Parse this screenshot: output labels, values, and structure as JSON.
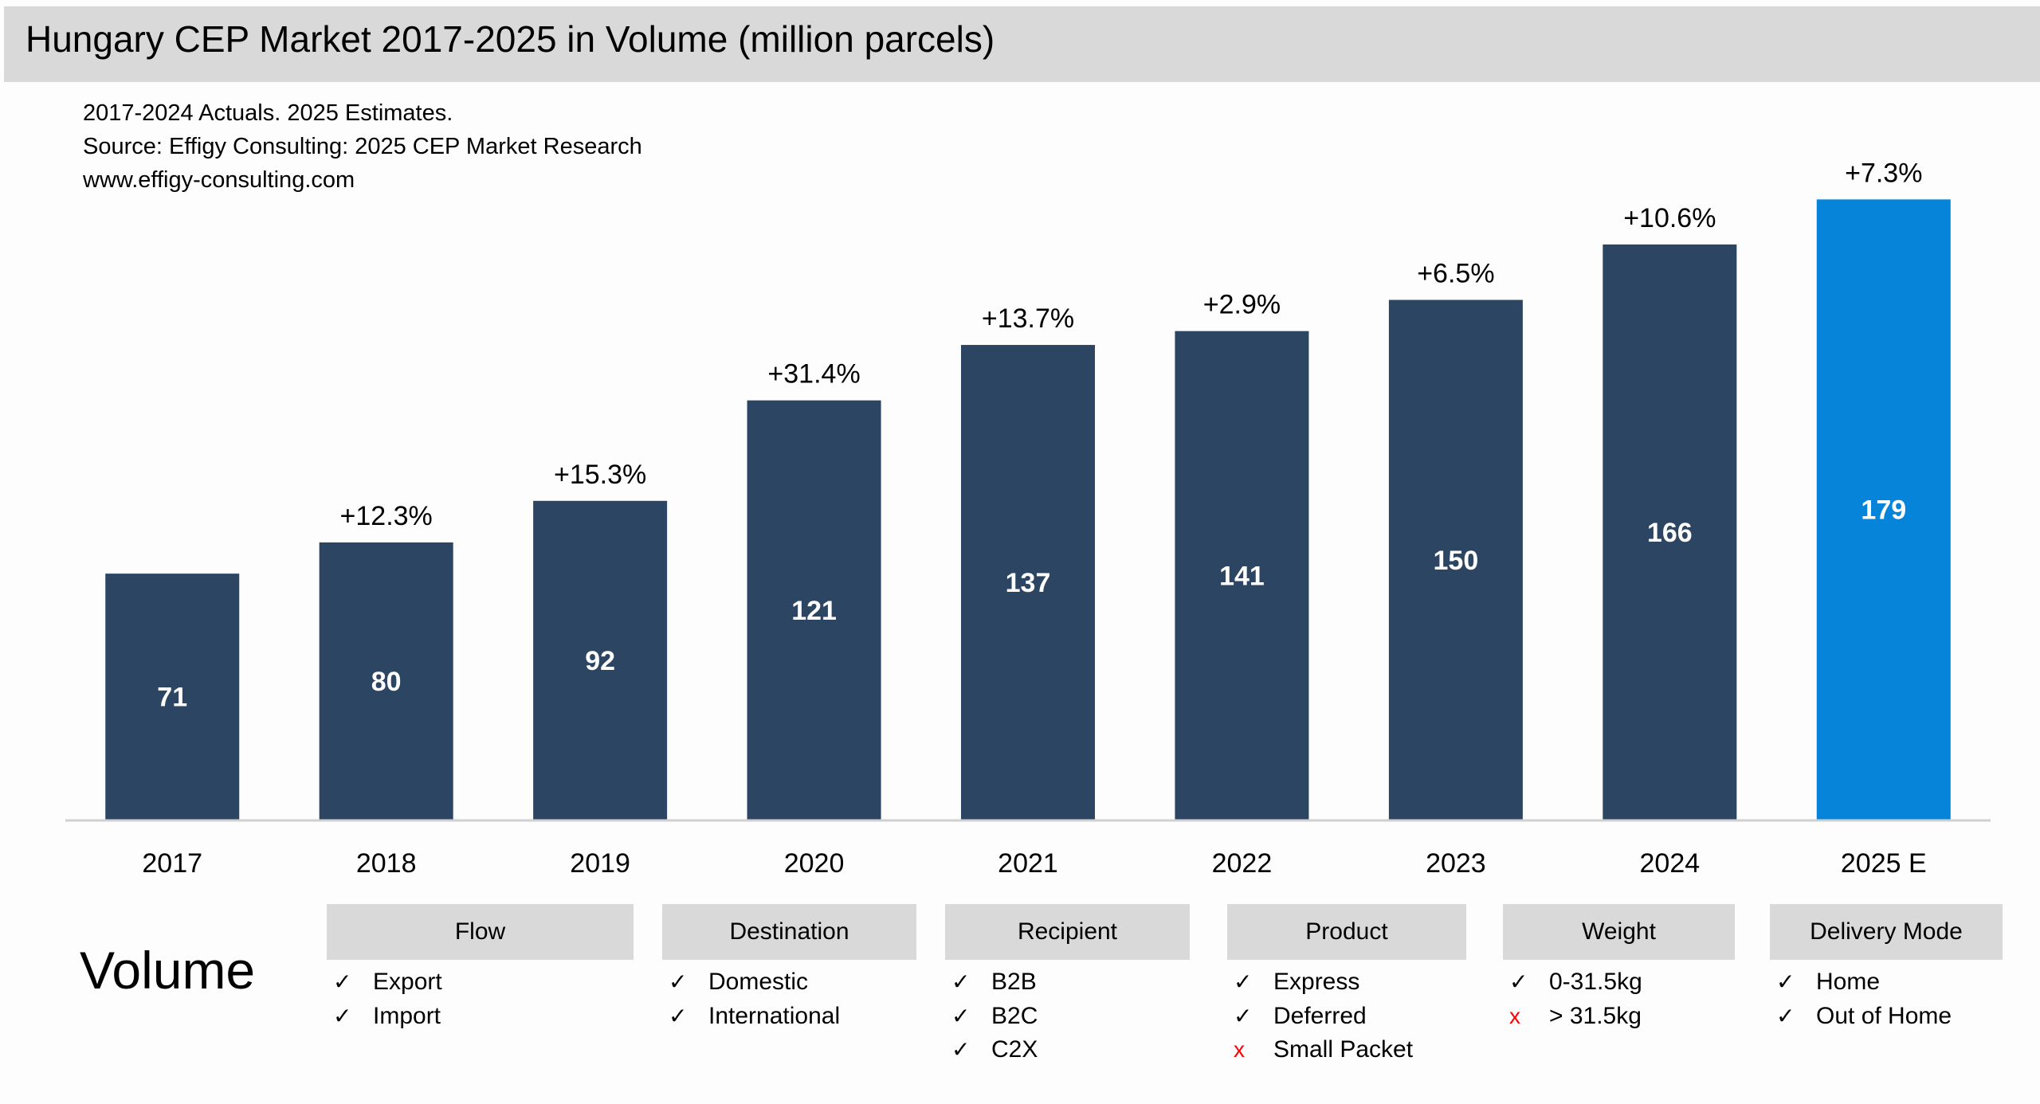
{
  "header": {
    "title": "Hungary CEP Market 2017-2025 in Volume (million parcels)"
  },
  "notes": [
    "2017-2024 Actuals. 2025 Estimates.",
    "Source: Effigy Consulting: 2025 CEP Market Research",
    "www.effigy-consulting.com"
  ],
  "chart_data": {
    "type": "bar",
    "categories": [
      "2017",
      "2018",
      "2019",
      "2020",
      "2021",
      "2022",
      "2023",
      "2024",
      "2025 E"
    ],
    "values": [
      71,
      80,
      92,
      121,
      137,
      141,
      150,
      166,
      179
    ],
    "growth_labels": [
      "",
      "+12.3%",
      "+15.3%",
      "+31.4%",
      "+13.7%",
      "+2.9%",
      "+6.5%",
      "+10.6%",
      "+7.3%"
    ],
    "ylim": [
      0,
      200
    ],
    "grid": false,
    "colors": {
      "actual": "#2c4563",
      "estimate": "#0684da"
    }
  },
  "scope": {
    "label": "Volume",
    "groups": [
      {
        "title": "Flow",
        "items": [
          {
            "text": "Export",
            "included": true
          },
          {
            "text": "Import",
            "included": true
          }
        ]
      },
      {
        "title": "Destination",
        "items": [
          {
            "text": "Domestic",
            "included": true
          },
          {
            "text": "International",
            "included": true
          }
        ]
      },
      {
        "title": "Recipient",
        "items": [
          {
            "text": "B2B",
            "included": true
          },
          {
            "text": "B2C",
            "included": true
          },
          {
            "text": "C2X",
            "included": true
          }
        ]
      },
      {
        "title": "Product",
        "items": [
          {
            "text": "Express",
            "included": true
          },
          {
            "text": "Deferred",
            "included": true
          },
          {
            "text": "Small Packet",
            "included": false
          }
        ]
      },
      {
        "title": "Weight",
        "items": [
          {
            "text": "0-31.5kg",
            "included": true
          },
          {
            "text": "> 31.5kg",
            "included": false
          }
        ]
      },
      {
        "title": "Delivery Mode",
        "items": [
          {
            "text": "Home",
            "included": true
          },
          {
            "text": "Out of Home",
            "included": true
          }
        ]
      }
    ],
    "marks": {
      "included": "✓",
      "excluded": "x"
    }
  }
}
